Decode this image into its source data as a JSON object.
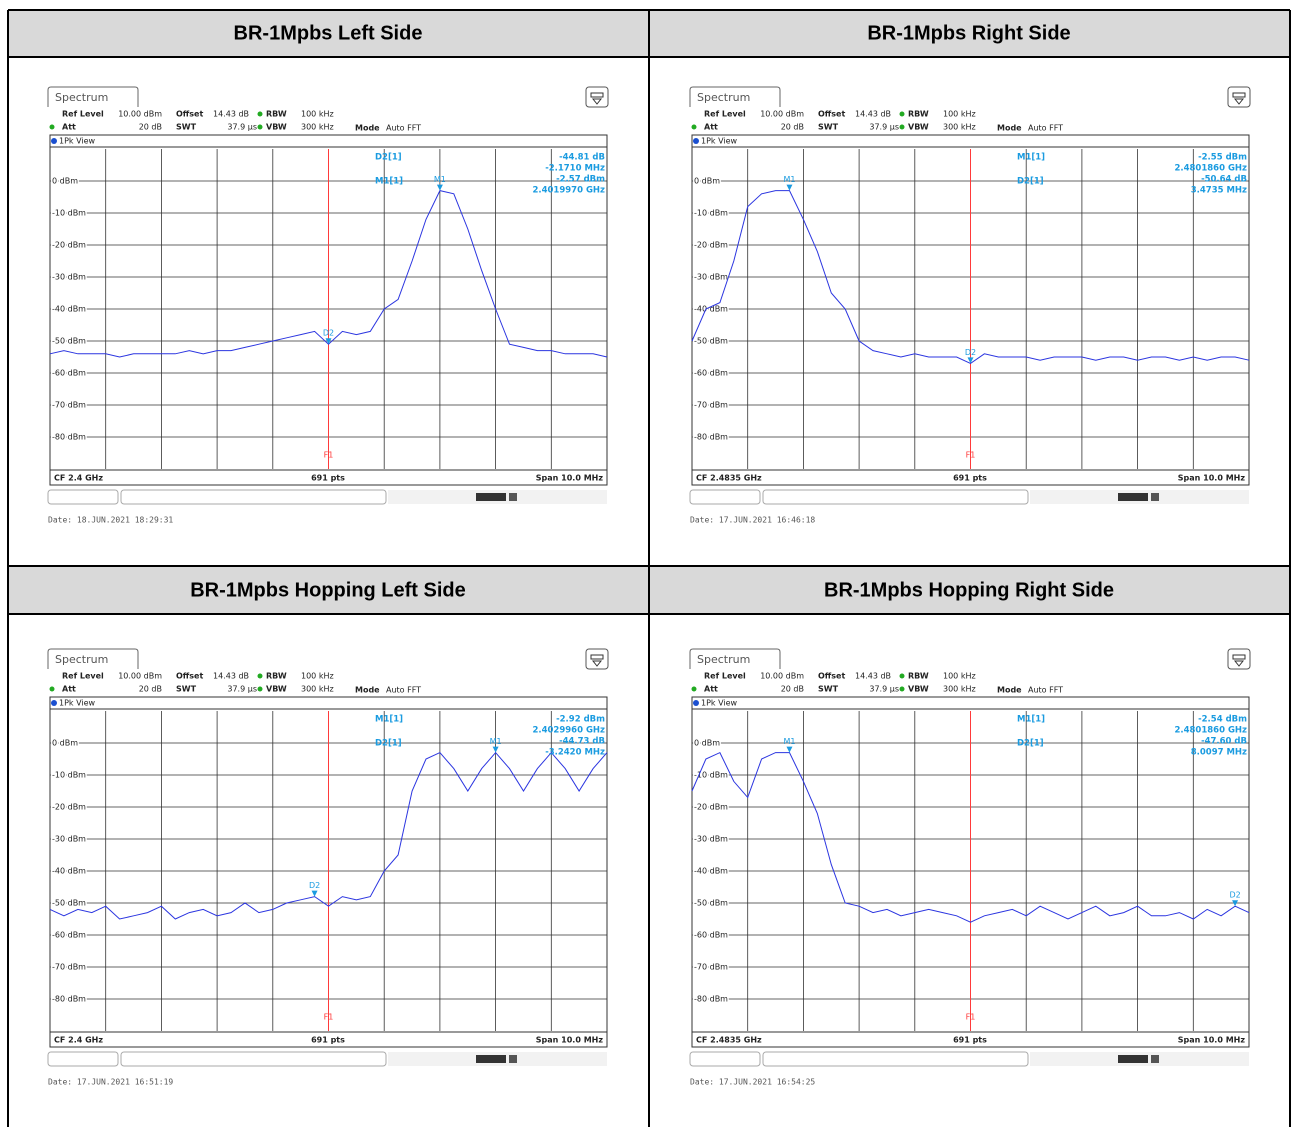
{
  "table": {
    "headers": [
      "BR-1Mpbs Left Side",
      "BR-1Mpbs Right Side",
      "BR-1Mpbs Hopping Left Side",
      "BR-1Mpbs Hopping Right Side"
    ],
    "analyzer": {
      "tab": "Spectrum",
      "ref_level_label": "Ref Level",
      "ref_level": "10.00 dBm",
      "offset_label": "Offset",
      "offset": "14.43 dB",
      "rbw_label": "RBW",
      "rbw": "100 kHz",
      "att_label": "Att",
      "att": "20 dB",
      "swt_label": "SWT",
      "swt": "37.9 µs",
      "vbw_label": "VBW",
      "vbw": "300 kHz",
      "mode_label": "Mode",
      "mode": "Auto FFT",
      "view": "1Pk View",
      "points": "691 pts",
      "span": "Span 10.0 MHz",
      "f1": "F1",
      "ylim": [
        -90,
        10
      ],
      "yticks": [
        {
          "value": 0,
          "label": "0 dBm"
        },
        {
          "value": -10,
          "label": "-10 dBm"
        },
        {
          "value": -20,
          "label": "-20 dBm"
        },
        {
          "value": -30,
          "label": "-30 dBm"
        },
        {
          "value": -40,
          "label": "-40 dBm"
        },
        {
          "value": -50,
          "label": "-50 dBm"
        },
        {
          "value": -60,
          "label": "-60 dBm"
        },
        {
          "value": -70,
          "label": "-70 dBm"
        },
        {
          "value": -80,
          "label": "-80 dBm"
        }
      ]
    },
    "panels": [
      {
        "cf": "CF 2.4 GHz",
        "date": "Date: 18.JUN.2021  18:29:31",
        "readouts": [
          {
            "name": "D2[1]",
            "lines": [
              "-44.81 dB",
              "-2.1710 MHz"
            ]
          },
          {
            "name": "M1[1]",
            "lines": [
              "-2.57 dBm",
              "2.4019970 GHz"
            ]
          }
        ],
        "marker_labels": [
          "D2",
          "M1"
        ],
        "trace": [
          -54,
          -53,
          -54,
          -54,
          -54,
          -55,
          -54,
          -54,
          -54,
          -54,
          -53,
          -54,
          -53,
          -53,
          -52,
          -51,
          -50,
          -49,
          -48,
          -47,
          -51,
          -47,
          -48,
          -47,
          -40,
          -37,
          -25,
          -12,
          -3,
          -4,
          -15,
          -28,
          -40,
          -51,
          -52,
          -53,
          -53,
          -54,
          -54,
          -54,
          -55
        ]
      },
      {
        "cf": "CF 2.4835 GHz",
        "date": "Date: 17.JUN.2021  16:46:18",
        "readouts": [
          {
            "name": "M1[1]",
            "lines": [
              "-2.55 dBm",
              "2.4801860 GHz"
            ]
          },
          {
            "name": "D2[1]",
            "lines": [
              "-50.64 dB",
              "3.4735 MHz"
            ]
          }
        ],
        "marker_labels": [
          "M1",
          "D2"
        ],
        "trace": [
          -50,
          -40,
          -38,
          -25,
          -8,
          -4,
          -3,
          -3,
          -12,
          -22,
          -35,
          -40,
          -50,
          -53,
          -54,
          -55,
          -54,
          -55,
          -55,
          -55,
          -57,
          -54,
          -55,
          -55,
          -55,
          -56,
          -55,
          -55,
          -55,
          -56,
          -55,
          -55,
          -56,
          -55,
          -55,
          -56,
          -55,
          -56,
          -55,
          -55,
          -56
        ]
      },
      {
        "cf": "CF 2.4 GHz",
        "date": "Date: 17.JUN.2021  16:51:19",
        "readouts": [
          {
            "name": "M1[1]",
            "lines": [
              "-2.92 dBm",
              "2.4029960 GHz"
            ]
          },
          {
            "name": "D2[1]",
            "lines": [
              "-44.73 dB",
              "-3.2420 MHz"
            ]
          }
        ],
        "marker_labels": [
          "D2",
          "M1"
        ],
        "trace": [
          -52,
          -54,
          -52,
          -53,
          -51,
          -55,
          -54,
          -53,
          -51,
          -55,
          -53,
          -52,
          -54,
          -53,
          -50,
          -53,
          -52,
          -50,
          -49,
          -48,
          -51,
          -48,
          -49,
          -48,
          -40,
          -35,
          -15,
          -5,
          -3,
          -8,
          -15,
          -8,
          -3,
          -8,
          -15,
          -8,
          -3,
          -8,
          -15,
          -8,
          -3
        ]
      },
      {
        "cf": "CF 2.4835 GHz",
        "date": "Date: 17.JUN.2021  16:54:25",
        "readouts": [
          {
            "name": "M1[1]",
            "lines": [
              "-2.54 dBm",
              "2.4801860 GHz"
            ]
          },
          {
            "name": "D2[1]",
            "lines": [
              "-47.60 dB",
              "8.0097 MHz"
            ]
          }
        ],
        "marker_labels": [
          "M1",
          "D2"
        ],
        "trace": [
          -15,
          -5,
          -3,
          -12,
          -17,
          -5,
          -3,
          -3,
          -12,
          -22,
          -38,
          -50,
          -51,
          -53,
          -52,
          -54,
          -53,
          -52,
          -53,
          -54,
          -56,
          -54,
          -53,
          -52,
          -54,
          -51,
          -53,
          -55,
          -53,
          -51,
          -54,
          -53,
          -51,
          -54,
          -54,
          -53,
          -55,
          -52,
          -54,
          -51,
          -53
        ]
      }
    ]
  }
}
